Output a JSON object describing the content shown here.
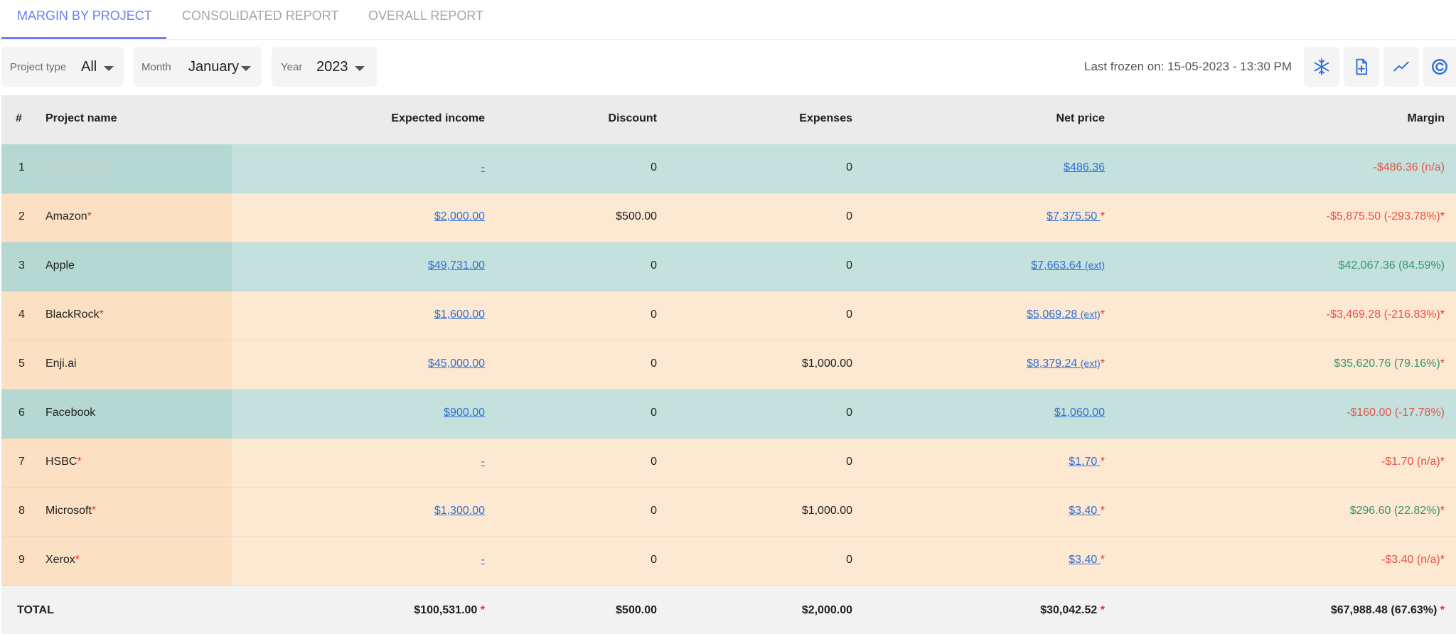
{
  "tabs": [
    {
      "label": "MARGIN BY PROJECT",
      "active": true
    },
    {
      "label": "CONSOLIDATED REPORT",
      "active": false
    },
    {
      "label": "OVERALL REPORT",
      "active": false
    }
  ],
  "filters": {
    "project_type": {
      "label": "Project type",
      "value": "All"
    },
    "month": {
      "label": "Month",
      "value": "January"
    },
    "year": {
      "label": "Year",
      "value": "2023"
    }
  },
  "status": {
    "last_frozen": "Last frozen on: 15-05-2023 - 13:30 PM"
  },
  "toolbar_icons": [
    "snowflake-icon",
    "file-add-icon",
    "trend-chart-icon",
    "refresh-icon"
  ],
  "colors": {
    "accent": "#6b7ff0",
    "teal_row": "#c4e1dd",
    "peach_row": "#fde8d1",
    "negative": "#e5534b",
    "positive": "#2f9a6a",
    "link": "#2f6fd6"
  },
  "table": {
    "headers": {
      "index": "#",
      "project_name": "Project name",
      "expected_income": "Expected income",
      "discount": "Discount",
      "expenses": "Expenses",
      "net_price": "Net price",
      "margin": "Margin"
    },
    "rows": [
      {
        "index": "1",
        "name": "",
        "name_star": "",
        "income": "-",
        "discount": "0",
        "expenses": "0",
        "net_price": "$486.36",
        "net_ext": "",
        "net_star": "",
        "margin": "-$486.36 (n/a)",
        "margin_star": "",
        "style": "teal",
        "tone": "neg"
      },
      {
        "index": "2",
        "name": "Amazon",
        "name_star": "*",
        "income": "$2,000.00",
        "discount": "$500.00",
        "expenses": "0",
        "net_price": "$7,375.50",
        "net_ext": "",
        "net_star": "*",
        "margin": "-$5,875.50 (-293.78%)",
        "margin_star": "*",
        "style": "peach",
        "tone": "neg"
      },
      {
        "index": "3",
        "name": "Apple",
        "name_star": "",
        "income": "$49,731.00",
        "discount": "0",
        "expenses": "0",
        "net_price": "$7,663.64",
        "net_ext": "(ext)",
        "net_star": "",
        "margin": "$42,067.36 (84.59%)",
        "margin_star": "",
        "style": "teal",
        "tone": "pos"
      },
      {
        "index": "4",
        "name": "BlackRock",
        "name_star": "*",
        "income": "$1,600.00",
        "discount": "0",
        "expenses": "0",
        "net_price": "$5,069.28",
        "net_ext": "(ext)",
        "net_star": "*",
        "margin": "-$3,469.28 (-216.83%)",
        "margin_star": "*",
        "style": "peach",
        "tone": "neg"
      },
      {
        "index": "5",
        "name": "Enji.ai",
        "name_star": "",
        "income": "$45,000.00",
        "discount": "0",
        "expenses": "$1,000.00",
        "net_price": "$8,379.24",
        "net_ext": "(ext)",
        "net_star": "*",
        "margin": "$35,620.76 (79.16%)",
        "margin_star": "*",
        "style": "peach",
        "tone": "pos"
      },
      {
        "index": "6",
        "name": "Facebook",
        "name_star": "",
        "income": "$900.00",
        "discount": "0",
        "expenses": "0",
        "net_price": "$1,060.00",
        "net_ext": "",
        "net_star": "",
        "margin": "-$160.00 (-17.78%)",
        "margin_star": "",
        "style": "teal",
        "tone": "neg"
      },
      {
        "index": "7",
        "name": "HSBC",
        "name_star": "*",
        "income": "-",
        "discount": "0",
        "expenses": "0",
        "net_price": "$1.70",
        "net_ext": "",
        "net_star": "*",
        "margin": "-$1.70 (n/a)",
        "margin_star": "*",
        "style": "peach",
        "tone": "neg"
      },
      {
        "index": "8",
        "name": "Microsoft",
        "name_star": "*",
        "income": "$1,300.00",
        "discount": "0",
        "expenses": "$1,000.00",
        "net_price": "$3.40",
        "net_ext": "",
        "net_star": "*",
        "margin": "$296.60 (22.82%)",
        "margin_star": "*",
        "style": "peach",
        "tone": "pos"
      },
      {
        "index": "9",
        "name": "Xerox",
        "name_star": "*",
        "income": "-",
        "discount": "0",
        "expenses": "0",
        "net_price": "$3.40",
        "net_ext": "",
        "net_star": "*",
        "margin": "-$3.40 (n/a)",
        "margin_star": "*",
        "style": "peach",
        "tone": "neg"
      }
    ],
    "total": {
      "label": "TOTAL",
      "income": "$100,531.00",
      "income_star": "*",
      "discount": "$500.00",
      "expenses": "$2,000.00",
      "net_price": "$30,042.52",
      "net_star": "*",
      "margin": "$67,988.48 (67.63%)",
      "margin_star": "*"
    }
  }
}
